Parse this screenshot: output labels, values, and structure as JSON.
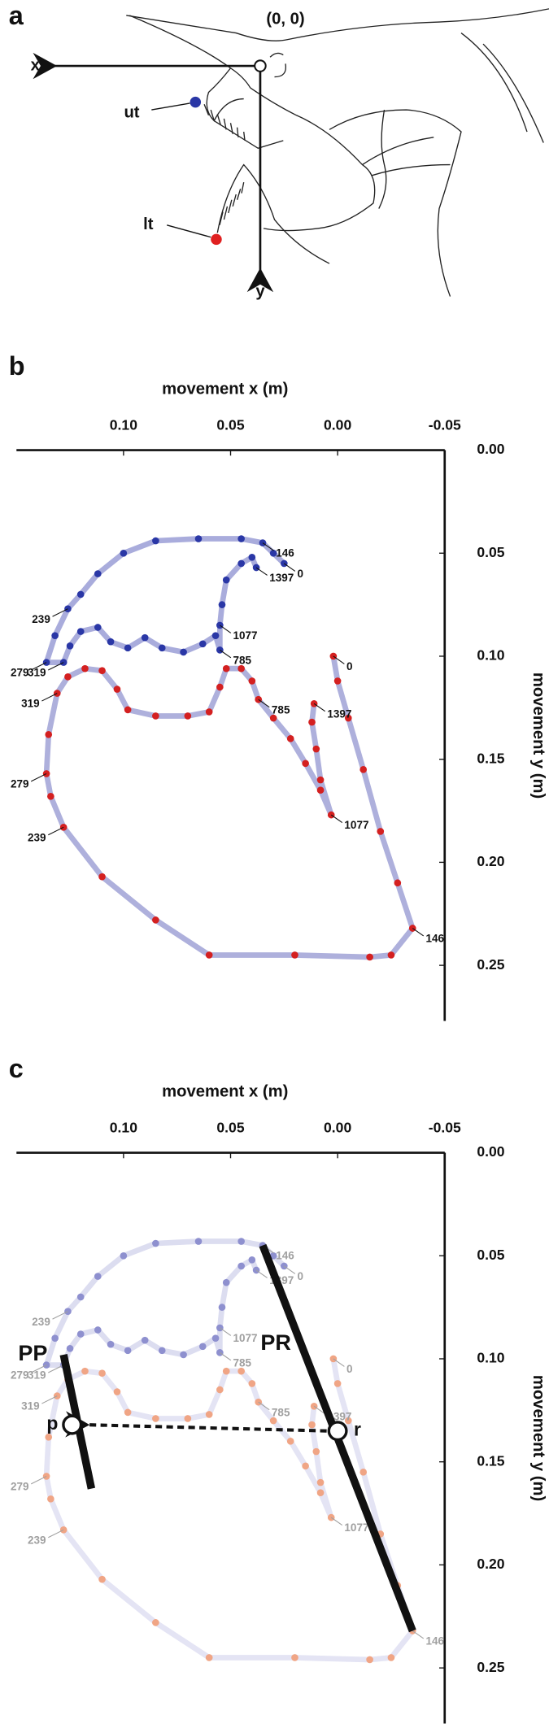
{
  "panel_a": {
    "label": "a",
    "origin_label": "(0, 0)",
    "x_axis": "x",
    "y_axis": "y",
    "upper_tooth": "ut",
    "lower_tooth": "lt"
  },
  "chart_data": [
    {
      "type": "line",
      "panel_label": "b",
      "x_label": "movement x (m)",
      "y_label": "movement y (m)",
      "xlim": [
        0.15,
        -0.05
      ],
      "ylim": [
        0,
        0.277
      ],
      "xticks": [
        {
          "value": 0.1,
          "label": "0.10"
        },
        0.05,
        {
          "value": 0,
          "label": "0.00"
        },
        -0.05
      ],
      "yticks": [
        {
          "value": 0,
          "label": "0.00"
        },
        0.05,
        {
          "value": 0.1,
          "label": "0.10"
        },
        0.15,
        {
          "value": 0.2,
          "label": "0.20"
        },
        0.25
      ],
      "label_color": "#111111",
      "series": [
        {
          "color": "#2a37a6",
          "line_color": "#a9acdc",
          "x": [
            0.025,
            0.03,
            0.035,
            0.045,
            0.065,
            0.085,
            0.1,
            0.112,
            0.12,
            0.126,
            0.132,
            0.136,
            0.128,
            0.125,
            0.12,
            0.112,
            0.106,
            0.098,
            0.09,
            0.082,
            0.072,
            0.063,
            0.057,
            0.055,
            0.055,
            0.054,
            0.052,
            0.045,
            0.04,
            0.038
          ],
          "values": [
            0.055,
            0.05,
            0.045,
            0.043,
            0.043,
            0.044,
            0.05,
            0.06,
            0.07,
            0.077,
            0.09,
            0.103,
            0.103,
            0.095,
            0.088,
            0.086,
            0.093,
            0.096,
            0.091,
            0.096,
            0.098,
            0.094,
            0.09,
            0.097,
            0.085,
            0.075,
            0.063,
            0.055,
            0.052,
            0.057
          ],
          "point_labels": [
            0,
            null,
            146,
            null,
            null,
            null,
            null,
            null,
            null,
            239,
            null,
            279,
            319,
            null,
            null,
            null,
            null,
            null,
            null,
            null,
            null,
            null,
            null,
            785,
            1077,
            null,
            null,
            null,
            null,
            1397
          ]
        },
        {
          "color": "#d42020",
          "line_color": "#aeb0dc",
          "x": [
            0.002,
            0.0,
            -0.005,
            -0.012,
            -0.02,
            -0.028,
            -0.035,
            -0.025,
            -0.015,
            0.02,
            0.06,
            0.085,
            0.11,
            0.128,
            0.134,
            0.136,
            0.135,
            0.131,
            0.126,
            0.118,
            0.11,
            0.103,
            0.098,
            0.085,
            0.07,
            0.06,
            0.055,
            0.052,
            0.045,
            0.04,
            0.037,
            0.03,
            0.022,
            0.015,
            0.008,
            0.003,
            0.008,
            0.01,
            0.012,
            0.011
          ],
          "values": [
            0.1,
            0.112,
            0.13,
            0.155,
            0.185,
            0.21,
            0.232,
            0.245,
            0.246,
            0.245,
            0.245,
            0.228,
            0.207,
            0.183,
            0.168,
            0.157,
            0.138,
            0.118,
            0.11,
            0.106,
            0.107,
            0.116,
            0.126,
            0.129,
            0.129,
            0.127,
            0.115,
            0.106,
            0.106,
            0.112,
            0.121,
            0.13,
            0.14,
            0.152,
            0.165,
            0.177,
            0.16,
            0.145,
            0.132,
            0.123
          ],
          "point_labels": [
            0,
            null,
            null,
            null,
            null,
            null,
            146,
            null,
            null,
            null,
            null,
            null,
            null,
            239,
            null,
            279,
            null,
            319,
            null,
            null,
            null,
            null,
            null,
            null,
            null,
            null,
            null,
            null,
            null,
            null,
            785,
            null,
            null,
            null,
            null,
            1077,
            null,
            null,
            null,
            1397
          ]
        }
      ]
    },
    {
      "type": "line",
      "panel_label": "c",
      "x_label": "movement x (m)",
      "y_label": "movement y (m)",
      "xlim": [
        0.15,
        -0.05
      ],
      "ylim": [
        0,
        0.277
      ],
      "xticks": [
        {
          "value": 0.1,
          "label": "0.10"
        },
        0.05,
        {
          "value": 0,
          "label": "0.00"
        },
        -0.05
      ],
      "yticks": [
        {
          "value": 0,
          "label": "0.00"
        },
        0.05,
        {
          "value": 0.1,
          "label": "0.10"
        },
        0.15,
        {
          "value": 0.2,
          "label": "0.20"
        },
        0.25
      ],
      "label_color": "#a0a0a0",
      "series": [
        {
          "color": "#8e90cf",
          "line_color": "#dcddf0",
          "x": [
            0.025,
            0.03,
            0.035,
            0.045,
            0.065,
            0.085,
            0.1,
            0.112,
            0.12,
            0.126,
            0.132,
            0.136,
            0.128,
            0.125,
            0.12,
            0.112,
            0.106,
            0.098,
            0.09,
            0.082,
            0.072,
            0.063,
            0.057,
            0.055,
            0.055,
            0.054,
            0.052,
            0.045,
            0.04,
            0.038
          ],
          "values": [
            0.055,
            0.05,
            0.045,
            0.043,
            0.043,
            0.044,
            0.05,
            0.06,
            0.07,
            0.077,
            0.09,
            0.103,
            0.103,
            0.095,
            0.088,
            0.086,
            0.093,
            0.096,
            0.091,
            0.096,
            0.098,
            0.094,
            0.09,
            0.097,
            0.085,
            0.075,
            0.063,
            0.055,
            0.052,
            0.057
          ],
          "point_labels": [
            0,
            null,
            146,
            null,
            null,
            null,
            null,
            null,
            null,
            239,
            null,
            279,
            319,
            null,
            null,
            null,
            null,
            null,
            null,
            null,
            null,
            null,
            null,
            785,
            1077,
            null,
            null,
            null,
            null,
            1397
          ]
        },
        {
          "color": "#f0a585",
          "line_color": "#e4e4f4",
          "x": [
            0.002,
            0.0,
            -0.005,
            -0.012,
            -0.02,
            -0.028,
            -0.035,
            -0.025,
            -0.015,
            0.02,
            0.06,
            0.085,
            0.11,
            0.128,
            0.134,
            0.136,
            0.135,
            0.131,
            0.126,
            0.118,
            0.11,
            0.103,
            0.098,
            0.085,
            0.07,
            0.06,
            0.055,
            0.052,
            0.045,
            0.04,
            0.037,
            0.03,
            0.022,
            0.015,
            0.008,
            0.003,
            0.008,
            0.01,
            0.012,
            0.011
          ],
          "values": [
            0.1,
            0.112,
            0.13,
            0.155,
            0.185,
            0.21,
            0.232,
            0.245,
            0.246,
            0.245,
            0.245,
            0.228,
            0.207,
            0.183,
            0.168,
            0.157,
            0.138,
            0.118,
            0.11,
            0.106,
            0.107,
            0.116,
            0.126,
            0.129,
            0.129,
            0.127,
            0.115,
            0.106,
            0.106,
            0.112,
            0.121,
            0.13,
            0.14,
            0.152,
            0.165,
            0.177,
            0.16,
            0.145,
            0.132,
            0.123
          ],
          "point_labels": [
            0,
            null,
            null,
            null,
            null,
            null,
            146,
            null,
            null,
            null,
            null,
            null,
            null,
            239,
            null,
            279,
            null,
            319,
            null,
            null,
            null,
            null,
            null,
            null,
            null,
            null,
            null,
            null,
            null,
            null,
            785,
            null,
            null,
            null,
            null,
            1077,
            null,
            null,
            null,
            1397
          ]
        }
      ],
      "lines": [
        {
          "label": "PP",
          "x": [
            0.128,
            0.115
          ],
          "y": [
            0.098,
            0.163
          ]
        },
        {
          "label": "PR",
          "x": [
            0.035,
            -0.035
          ],
          "y": [
            0.045,
            0.232
          ]
        }
      ],
      "points": [
        {
          "label": "p",
          "x": 0.124,
          "y": 0.132
        },
        {
          "label": "r",
          "x": 0.0,
          "y": 0.135
        }
      ]
    }
  ]
}
